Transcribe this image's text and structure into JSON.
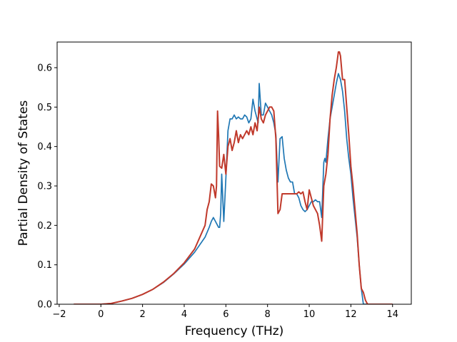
{
  "chart_data": {
    "type": "line",
    "xlabel": "Frequency (THz)",
    "ylabel": "Partial Density of States",
    "xlim": [
      -2.1,
      14.9
    ],
    "ylim": [
      0.0,
      0.665
    ],
    "x_ticks": [
      -2,
      0,
      2,
      4,
      6,
      8,
      10,
      12,
      14
    ],
    "y_ticks": [
      0.0,
      0.1,
      0.2,
      0.3,
      0.4,
      0.5,
      0.6
    ],
    "x_tick_labels": [
      "−2",
      "0",
      "2",
      "4",
      "6",
      "8",
      "10",
      "12",
      "14"
    ],
    "y_tick_labels": [
      "0.0",
      "0.1",
      "0.2",
      "0.3",
      "0.4",
      "0.5",
      "0.6"
    ],
    "grid": false,
    "series": [
      {
        "color": "#1f77b4",
        "x": [
          -1.3,
          0.0,
          0.5,
          1.0,
          1.5,
          2.0,
          2.5,
          3.0,
          3.5,
          4.0,
          4.5,
          5.0,
          5.2,
          5.3,
          5.4,
          5.5,
          5.6,
          5.65,
          5.7,
          5.75,
          5.8,
          5.9,
          6.0,
          6.1,
          6.2,
          6.3,
          6.4,
          6.5,
          6.6,
          6.7,
          6.8,
          6.9,
          7.0,
          7.1,
          7.2,
          7.3,
          7.4,
          7.5,
          7.55,
          7.6,
          7.7,
          7.8,
          7.9,
          8.0,
          8.1,
          8.2,
          8.3,
          8.4,
          8.5,
          8.6,
          8.7,
          8.8,
          8.9,
          9.0,
          9.1,
          9.2,
          9.3,
          9.4,
          9.5,
          9.6,
          9.7,
          9.8,
          9.9,
          10.0,
          10.1,
          10.2,
          10.3,
          10.4,
          10.5,
          10.6,
          10.7,
          10.75,
          10.8,
          10.9,
          11.0,
          11.1,
          11.2,
          11.3,
          11.4,
          11.5,
          11.6,
          11.7,
          11.8,
          11.9,
          12.0,
          12.1,
          12.2,
          12.3,
          12.4,
          12.5,
          12.6,
          12.7,
          12.8,
          13.0,
          14.0
        ],
        "y": [
          0.0,
          0.0,
          0.002,
          0.008,
          0.015,
          0.025,
          0.038,
          0.055,
          0.077,
          0.102,
          0.132,
          0.17,
          0.195,
          0.21,
          0.22,
          0.21,
          0.2,
          0.195,
          0.195,
          0.23,
          0.33,
          0.21,
          0.32,
          0.44,
          0.47,
          0.47,
          0.48,
          0.47,
          0.475,
          0.47,
          0.47,
          0.48,
          0.475,
          0.46,
          0.47,
          0.52,
          0.49,
          0.47,
          0.46,
          0.56,
          0.48,
          0.48,
          0.51,
          0.5,
          0.49,
          0.48,
          0.46,
          0.43,
          0.31,
          0.42,
          0.425,
          0.37,
          0.34,
          0.32,
          0.31,
          0.31,
          0.28,
          0.28,
          0.27,
          0.25,
          0.24,
          0.235,
          0.24,
          0.25,
          0.26,
          0.26,
          0.265,
          0.26,
          0.26,
          0.22,
          0.36,
          0.37,
          0.36,
          0.42,
          0.47,
          0.5,
          0.53,
          0.56,
          0.585,
          0.57,
          0.54,
          0.49,
          0.42,
          0.37,
          0.33,
          0.27,
          0.22,
          0.17,
          0.1,
          0.04,
          0.0,
          0.0,
          0.0,
          0.0,
          0.0
        ]
      },
      {
        "color": "#c0392b",
        "x": [
          -1.3,
          0.0,
          0.5,
          1.0,
          1.5,
          2.0,
          2.5,
          3.0,
          3.5,
          4.0,
          4.5,
          5.0,
          5.1,
          5.2,
          5.3,
          5.4,
          5.5,
          5.55,
          5.6,
          5.65,
          5.7,
          5.8,
          5.9,
          6.0,
          6.1,
          6.2,
          6.3,
          6.4,
          6.5,
          6.6,
          6.7,
          6.8,
          6.9,
          7.0,
          7.1,
          7.2,
          7.3,
          7.4,
          7.5,
          7.6,
          7.7,
          7.8,
          7.9,
          8.0,
          8.1,
          8.2,
          8.3,
          8.4,
          8.5,
          8.6,
          8.7,
          8.8,
          8.9,
          9.0,
          9.1,
          9.2,
          9.3,
          9.4,
          9.5,
          9.6,
          9.7,
          9.8,
          9.9,
          10.0,
          10.1,
          10.2,
          10.3,
          10.4,
          10.5,
          10.6,
          10.7,
          10.8,
          10.9,
          11.0,
          11.1,
          11.2,
          11.3,
          11.4,
          11.45,
          11.5,
          11.6,
          11.7,
          11.8,
          11.9,
          12.0,
          12.1,
          12.2,
          12.3,
          12.4,
          12.5,
          12.6,
          12.7,
          12.8,
          13.0,
          14.0
        ],
        "y": [
          0.0,
          0.0,
          0.002,
          0.008,
          0.015,
          0.025,
          0.038,
          0.056,
          0.078,
          0.105,
          0.14,
          0.2,
          0.24,
          0.26,
          0.305,
          0.3,
          0.27,
          0.3,
          0.49,
          0.43,
          0.35,
          0.345,
          0.38,
          0.33,
          0.4,
          0.42,
          0.39,
          0.41,
          0.44,
          0.41,
          0.43,
          0.42,
          0.43,
          0.44,
          0.43,
          0.45,
          0.43,
          0.46,
          0.44,
          0.5,
          0.47,
          0.46,
          0.48,
          0.49,
          0.5,
          0.5,
          0.49,
          0.42,
          0.23,
          0.24,
          0.28,
          0.28,
          0.28,
          0.28,
          0.28,
          0.28,
          0.28,
          0.28,
          0.285,
          0.28,
          0.285,
          0.26,
          0.24,
          0.29,
          0.27,
          0.25,
          0.24,
          0.23,
          0.2,
          0.16,
          0.3,
          0.33,
          0.38,
          0.47,
          0.53,
          0.57,
          0.6,
          0.64,
          0.64,
          0.63,
          0.57,
          0.57,
          0.5,
          0.43,
          0.35,
          0.3,
          0.24,
          0.18,
          0.1,
          0.04,
          0.03,
          0.01,
          0.0,
          0.0,
          0.0
        ]
      }
    ]
  }
}
